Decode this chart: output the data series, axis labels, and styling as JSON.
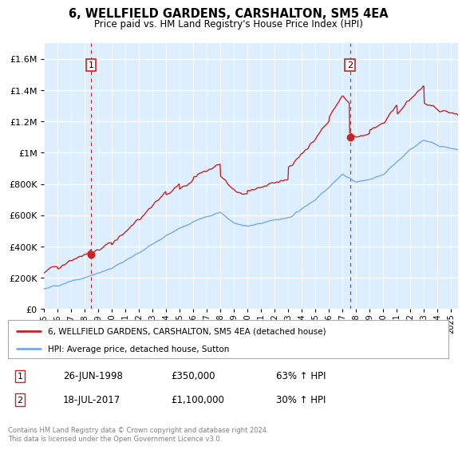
{
  "title": "6, WELLFIELD GARDENS, CARSHALTON, SM5 4EA",
  "subtitle": "Price paid vs. HM Land Registry's House Price Index (HPI)",
  "legend_line1": "6, WELLFIELD GARDENS, CARSHALTON, SM5 4EA (detached house)",
  "legend_line2": "HPI: Average price, detached house, Sutton",
  "annotation1_date": "26-JUN-1998",
  "annotation1_price": "£350,000",
  "annotation1_hpi": "63% ↑ HPI",
  "annotation2_date": "18-JUL-2017",
  "annotation2_price": "£1,100,000",
  "annotation2_hpi": "30% ↑ HPI",
  "footer": "Contains HM Land Registry data © Crown copyright and database right 2024.\nThis data is licensed under the Open Government Licence v3.0.",
  "hpi_color": "#7aaadd",
  "price_color": "#cc2222",
  "annotation_color": "#cc2222",
  "bg_color": "#ddeeff",
  "ylim": [
    0,
    1700000
  ],
  "yticks": [
    0,
    200000,
    400000,
    600000,
    800000,
    1000000,
    1200000,
    1400000,
    1600000
  ],
  "xlim_start": 1995.0,
  "xlim_end": 2025.5,
  "sale1_x": 1998.48,
  "sale1_y": 350000,
  "sale2_x": 2017.54,
  "sale2_y": 1100000
}
